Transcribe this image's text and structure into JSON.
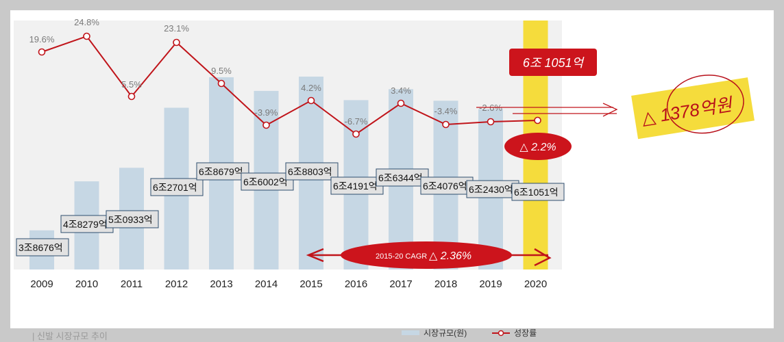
{
  "chart_data": {
    "type": "bar+line",
    "categories": [
      "2009",
      "2010",
      "2011",
      "2012",
      "2013",
      "2014",
      "2015",
      "2016",
      "2017",
      "2018",
      "2019",
      "2020"
    ],
    "series": [
      {
        "name": "시장규모(원)",
        "type": "bar",
        "values_eok": [
          38676,
          48279,
          50933,
          62701,
          68679,
          66002,
          68803,
          64191,
          66344,
          64076,
          62430,
          61051
        ],
        "labels": [
          "3조8676억",
          "4조8279억",
          "5조0933억",
          "6조2701억",
          "6조8679억",
          "6조6002억",
          "6조8803억",
          "6조4191억",
          "6조6344억",
          "6조4076억",
          "6조2430억",
          "6조1051억"
        ]
      },
      {
        "name": "성장률",
        "type": "line",
        "values": [
          19.6,
          24.8,
          5.5,
          23.1,
          9.5,
          -3.9,
          4.2,
          -6.7,
          3.4,
          -3.4,
          -2.6,
          -2.2
        ],
        "labels": [
          "19.6%",
          "24.8%",
          "5.5%",
          "23.1%",
          "9.5%",
          "-3.9%",
          "4.2%",
          "-6.7%",
          "3.4%",
          "-3.4%",
          "-2.6%",
          ""
        ]
      }
    ],
    "highlight_category": "2020",
    "grid": false
  },
  "annotations": {
    "top_value": "6조 1051억",
    "decline": "△ 1378억원",
    "growth_2020": "△ 2.2%",
    "cagr_label": "2015-20 CAGR",
    "cagr_value": "△ 2.36%"
  },
  "caption": "| 신발 시장규모 추이",
  "legend": {
    "bar": "시장규모(원)",
    "line": "성장률"
  },
  "colors": {
    "bar": "#c6d7e4",
    "highlight": "#f5dc3c",
    "line": "#c0141a",
    "plot_bg": "#f1f1f1"
  }
}
